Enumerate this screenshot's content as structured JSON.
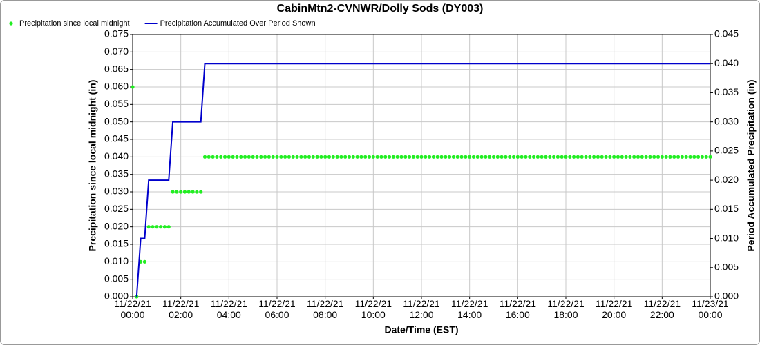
{
  "chart_data": {
    "type": "line",
    "title": "CabinMtn2-CVNWR/Dolly Sods (DY003)",
    "x_label": "Date/Time (EST)",
    "y_label": "Precipitation since local midnight (in)",
    "y2_label": "Period Accumulated Precipitation (in)",
    "grid": true,
    "legend": "top-left",
    "xlim": [
      "11/22/21 00:00",
      "11/23/21 00:00"
    ],
    "xticks": [
      "11/22/21 00:00",
      "11/22/21 02:00",
      "11/22/21 04:00",
      "11/22/21 06:00",
      "11/22/21 08:00",
      "11/22/21 10:00",
      "11/22/21 12:00",
      "11/22/21 14:00",
      "11/22/21 16:00",
      "11/22/21 18:00",
      "11/22/21 20:00",
      "11/22/21 22:00",
      "11/23/21 00:00"
    ],
    "ylim": [
      0,
      0.075
    ],
    "yticks": [
      {
        "value": 0,
        "label": "0.000"
      },
      0.005,
      {
        "value": 0.01,
        "label": "0.010"
      },
      0.015,
      {
        "value": 0.02,
        "label": "0.020"
      },
      0.025,
      {
        "value": 0.03,
        "label": "0.030"
      },
      0.035,
      {
        "value": 0.04,
        "label": "0.040"
      },
      0.045,
      {
        "value": 0.05,
        "label": "0.050"
      },
      0.055,
      {
        "value": 0.06,
        "label": "0.060"
      },
      0.065,
      {
        "value": 0.07,
        "label": "0.070"
      },
      0.075
    ],
    "y2lim": [
      0,
      0.045
    ],
    "y2ticks": [
      {
        "value": 0,
        "label": "0.000"
      },
      0.005,
      {
        "value": 0.01,
        "label": "0.010"
      },
      0.015,
      {
        "value": 0.02,
        "label": "0.020"
      },
      0.025,
      {
        "value": 0.03,
        "label": "0.030"
      },
      0.035,
      {
        "value": 0.04,
        "label": "0.040"
      },
      0.045
    ],
    "x": [
      "11/22/21 00:00",
      "11/22/21 00:10",
      "11/22/21 00:20",
      "11/22/21 00:30",
      "11/22/21 00:40",
      "11/22/21 00:50",
      "11/22/21 01:00",
      "11/22/21 01:10",
      "11/22/21 01:20",
      "11/22/21 01:30",
      "11/22/21 01:40",
      "11/22/21 01:50",
      "11/22/21 02:00",
      "11/22/21 02:10",
      "11/22/21 02:20",
      "11/22/21 02:30",
      "11/22/21 02:40",
      "11/22/21 02:50",
      "11/22/21 03:00",
      "11/22/21 03:10",
      "11/22/21 03:20",
      "11/22/21 03:30",
      "11/22/21 03:40",
      "11/22/21 03:50",
      "11/22/21 04:00",
      "11/22/21 04:10",
      "11/22/21 04:20",
      "11/22/21 04:30",
      "11/22/21 04:40",
      "11/22/21 04:50",
      "11/22/21 05:00",
      "11/22/21 05:10",
      "11/22/21 05:20",
      "11/22/21 05:30",
      "11/22/21 05:40",
      "11/22/21 05:50",
      "11/22/21 06:00",
      "11/22/21 06:10",
      "11/22/21 06:20",
      "11/22/21 06:30",
      "11/22/21 06:40",
      "11/22/21 06:50",
      "11/22/21 07:00",
      "11/22/21 07:10",
      "11/22/21 07:20",
      "11/22/21 07:30",
      "11/22/21 07:40",
      "11/22/21 07:50",
      "11/22/21 08:00",
      "11/22/21 08:10",
      "11/22/21 08:20",
      "11/22/21 08:30",
      "11/22/21 08:40",
      "11/22/21 08:50",
      "11/22/21 09:00",
      "11/22/21 09:10",
      "11/22/21 09:20",
      "11/22/21 09:30",
      "11/22/21 09:40",
      "11/22/21 09:50",
      "11/22/21 10:00",
      "11/22/21 10:10",
      "11/22/21 10:20",
      "11/22/21 10:30",
      "11/22/21 10:40",
      "11/22/21 10:50",
      "11/22/21 11:00",
      "11/22/21 11:10",
      "11/22/21 11:20",
      "11/22/21 11:30",
      "11/22/21 11:40",
      "11/22/21 11:50",
      "11/22/21 12:00",
      "11/22/21 12:10",
      "11/22/21 12:20",
      "11/22/21 12:30",
      "11/22/21 12:40",
      "11/22/21 12:50",
      "11/22/21 13:00",
      "11/22/21 13:10",
      "11/22/21 13:20",
      "11/22/21 13:30",
      "11/22/21 13:40",
      "11/22/21 13:50",
      "11/22/21 14:00",
      "11/22/21 14:10",
      "11/22/21 14:20",
      "11/22/21 14:30",
      "11/22/21 14:40",
      "11/22/21 14:50",
      "11/22/21 15:00",
      "11/22/21 15:10",
      "11/22/21 15:20",
      "11/22/21 15:30",
      "11/22/21 15:40",
      "11/22/21 15:50",
      "11/22/21 16:00",
      "11/22/21 16:10",
      "11/22/21 16:20",
      "11/22/21 16:30",
      "11/22/21 16:40",
      "11/22/21 16:50",
      "11/22/21 17:00",
      "11/22/21 17:10",
      "11/22/21 17:20",
      "11/22/21 17:30",
      "11/22/21 17:40",
      "11/22/21 17:50",
      "11/22/21 18:00",
      "11/22/21 18:10",
      "11/22/21 18:20",
      "11/22/21 18:30",
      "11/22/21 18:40",
      "11/22/21 18:50",
      "11/22/21 19:00",
      "11/22/21 19:10",
      "11/22/21 19:20",
      "11/22/21 19:30",
      "11/22/21 19:40",
      "11/22/21 19:50",
      "11/22/21 20:00",
      "11/22/21 20:10",
      "11/22/21 20:20",
      "11/22/21 20:30",
      "11/22/21 20:40",
      "11/22/21 20:50",
      "11/22/21 21:00",
      "11/22/21 21:10",
      "11/22/21 21:20",
      "11/22/21 21:30",
      "11/22/21 21:40",
      "11/22/21 21:50",
      "11/22/21 22:00",
      "11/22/21 22:10",
      "11/22/21 22:20",
      "11/22/21 22:30",
      "11/22/21 22:40",
      "11/22/21 22:50",
      "11/22/21 23:00",
      "11/22/21 23:10",
      "11/22/21 23:20",
      "11/22/21 23:30",
      "11/22/21 23:40",
      "11/22/21 23:50",
      "11/23/21 00:00"
    ],
    "series": [
      {
        "name": "Precipitation since local midnight",
        "color": "#22ee22",
        "style": "dots",
        "axis": "y",
        "values": [
          0.06,
          0,
          0.01,
          0.01,
          0.02,
          0.02,
          0.02,
          0.02,
          0.02,
          0.02,
          0.03,
          0.03,
          0.03,
          0.03,
          0.03,
          0.03,
          0.03,
          0.03,
          0.04,
          0.04,
          0.04,
          0.04,
          0.04,
          0.04,
          0.04,
          0.04,
          0.04,
          0.04,
          0.04,
          0.04,
          0.04,
          0.04,
          0.04,
          0.04,
          0.04,
          0.04,
          0.04,
          0.04,
          0.04,
          0.04,
          0.04,
          0.04,
          0.04,
          0.04,
          0.04,
          0.04,
          0.04,
          0.04,
          0.04,
          0.04,
          0.04,
          0.04,
          0.04,
          0.04,
          0.04,
          0.04,
          0.04,
          0.04,
          0.04,
          0.04,
          0.04,
          0.04,
          0.04,
          0.04,
          0.04,
          0.04,
          0.04,
          0.04,
          0.04,
          0.04,
          0.04,
          0.04,
          0.04,
          0.04,
          0.04,
          0.04,
          0.04,
          0.04,
          0.04,
          0.04,
          0.04,
          0.04,
          0.04,
          0.04,
          0.04,
          0.04,
          0.04,
          0.04,
          0.04,
          0.04,
          0.04,
          0.04,
          0.04,
          0.04,
          0.04,
          0.04,
          0.04,
          0.04,
          0.04,
          0.04,
          0.04,
          0.04,
          0.04,
          0.04,
          0.04,
          0.04,
          0.04,
          0.04,
          0.04,
          0.04,
          0.04,
          0.04,
          0.04,
          0.04,
          0.04,
          0.04,
          0.04,
          0.04,
          0.04,
          0.04,
          0.04,
          0.04,
          0.04,
          0.04,
          0.04,
          0.04,
          0.04,
          0.04,
          0.04,
          0.04,
          0.04,
          0.04,
          0.04,
          0.04,
          0.04,
          0.04,
          0.04,
          0.04,
          0.04,
          0.04,
          0.04,
          0.04,
          0.04,
          0.04,
          0.04
        ]
      },
      {
        "name": "Precipitation Accumulated Over Period Shown",
        "color": "#0000cc",
        "style": "line",
        "axis": "y2",
        "values": [
          null,
          0,
          0.01,
          0.01,
          0.02,
          0.02,
          0.02,
          0.02,
          0.02,
          0.02,
          0.03,
          0.03,
          0.03,
          0.03,
          0.03,
          0.03,
          0.03,
          0.03,
          0.04,
          0.04,
          0.04,
          0.04,
          0.04,
          0.04,
          0.04,
          0.04,
          0.04,
          0.04,
          0.04,
          0.04,
          0.04,
          0.04,
          0.04,
          0.04,
          0.04,
          0.04,
          0.04,
          0.04,
          0.04,
          0.04,
          0.04,
          0.04,
          0.04,
          0.04,
          0.04,
          0.04,
          0.04,
          0.04,
          0.04,
          0.04,
          0.04,
          0.04,
          0.04,
          0.04,
          0.04,
          0.04,
          0.04,
          0.04,
          0.04,
          0.04,
          0.04,
          0.04,
          0.04,
          0.04,
          0.04,
          0.04,
          0.04,
          0.04,
          0.04,
          0.04,
          0.04,
          0.04,
          0.04,
          0.04,
          0.04,
          0.04,
          0.04,
          0.04,
          0.04,
          0.04,
          0.04,
          0.04,
          0.04,
          0.04,
          0.04,
          0.04,
          0.04,
          0.04,
          0.04,
          0.04,
          0.04,
          0.04,
          0.04,
          0.04,
          0.04,
          0.04,
          0.04,
          0.04,
          0.04,
          0.04,
          0.04,
          0.04,
          0.04,
          0.04,
          0.04,
          0.04,
          0.04,
          0.04,
          0.04,
          0.04,
          0.04,
          0.04,
          0.04,
          0.04,
          0.04,
          0.04,
          0.04,
          0.04,
          0.04,
          0.04,
          0.04,
          0.04,
          0.04,
          0.04,
          0.04,
          0.04,
          0.04,
          0.04,
          0.04,
          0.04,
          0.04,
          0.04,
          0.04,
          0.04,
          0.04,
          0.04,
          0.04,
          0.04,
          0.04,
          0.04,
          0.04,
          0.04,
          0.04,
          0.04,
          0.04
        ]
      }
    ]
  }
}
